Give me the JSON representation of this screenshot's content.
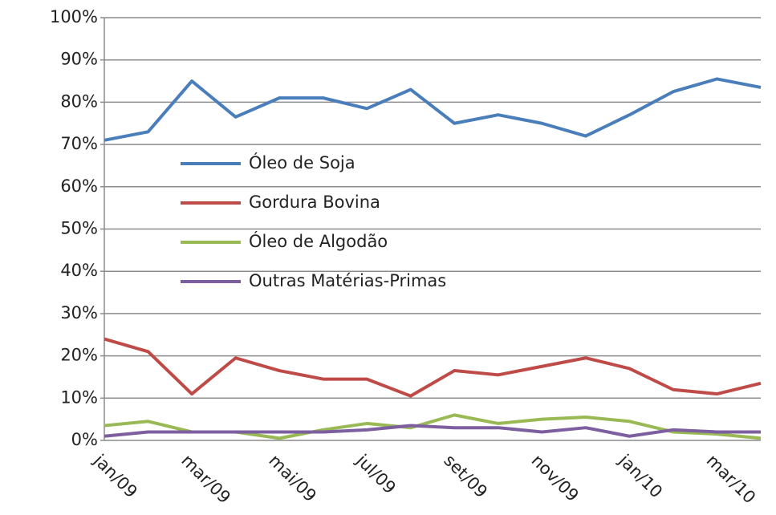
{
  "chart_data": {
    "type": "line",
    "categories": [
      "jan/09",
      null,
      "mar/09",
      null,
      "mai/09",
      null,
      "jul/09",
      null,
      "set/09",
      null,
      "nov/09",
      null,
      "jan/10",
      null,
      "mar/10",
      null
    ],
    "series": [
      {
        "name": "Óleo de Soja",
        "color": "#4a7ebb",
        "values": [
          71,
          73,
          85,
          76.5,
          81,
          81,
          78.5,
          83,
          75,
          77,
          75,
          72,
          77,
          82.5,
          85.5,
          83.5
        ]
      },
      {
        "name": "Gordura Bovina",
        "color": "#be4b48",
        "values": [
          24,
          21,
          11,
          19.5,
          16.5,
          14.5,
          14.5,
          10.5,
          16.5,
          15.5,
          17.5,
          19.5,
          17,
          12,
          11,
          13.5
        ]
      },
      {
        "name": "Óleo de Algodão",
        "color": "#98b954",
        "values": [
          3.5,
          4.5,
          2,
          2,
          0.5,
          2.5,
          4,
          3,
          6,
          4,
          5,
          5.5,
          4.5,
          2,
          1.5,
          0.5
        ]
      },
      {
        "name": "Outras Matérias-Primas",
        "color": "#7d5fa0",
        "values": [
          1,
          2,
          2,
          2,
          2,
          2,
          2.5,
          3.5,
          3,
          3,
          2,
          3,
          1,
          2.5,
          2,
          2
        ]
      }
    ],
    "ylim": [
      0,
      100
    ],
    "yticks": [
      {
        "value": 0,
        "label": "0%"
      },
      {
        "value": 10,
        "label": "10%"
      },
      {
        "value": 20,
        "label": "20%"
      },
      {
        "value": 30,
        "label": "30%"
      },
      {
        "value": 40,
        "label": "40%"
      },
      {
        "value": 50,
        "label": "50%"
      },
      {
        "value": 60,
        "label": "60%"
      },
      {
        "value": 70,
        "label": "70%"
      },
      {
        "value": 80,
        "label": "80%"
      },
      {
        "value": 90,
        "label": "90%"
      },
      {
        "value": 100,
        "label": "100%"
      }
    ],
    "grid": true
  }
}
